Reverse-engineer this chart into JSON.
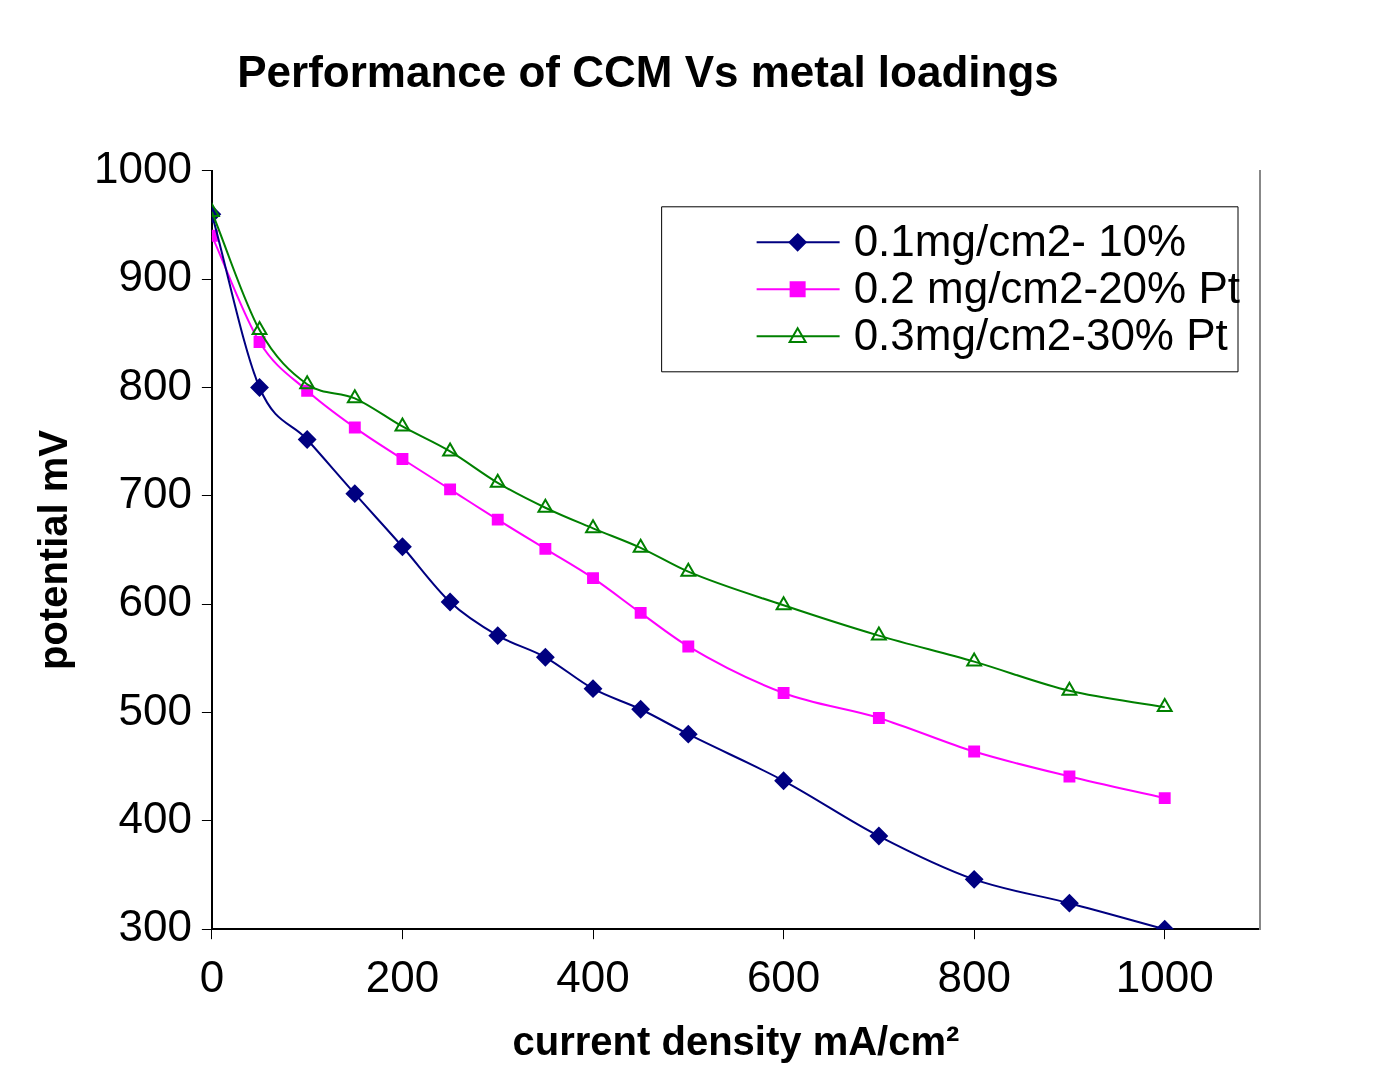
{
  "chart_data": {
    "type": "line",
    "title": "Performance of CCM Vs metal loadings",
    "xlabel": "current density mA/cm²",
    "ylabel": "potential mV",
    "xlim": [
      0,
      1100
    ],
    "xticks": [
      0,
      200,
      400,
      600,
      800,
      1000
    ],
    "ylim": [
      300,
      1000
    ],
    "yticks": [
      300,
      400,
      500,
      600,
      700,
      800,
      900,
      1000
    ],
    "grid": false,
    "legend": "top right",
    "line_style": "solid",
    "x": [
      0,
      50,
      100,
      150,
      200,
      250,
      300,
      350,
      400,
      450,
      500,
      600,
      700,
      800,
      900,
      1000
    ],
    "series": [
      {
        "name": "0.1mg/cm2- 10%",
        "color": "#000080",
        "marker": "diamond",
        "values": [
          960,
          800,
          752,
          702,
          653,
          602,
          571,
          551,
          522,
          503,
          480,
          437,
          386,
          346,
          324,
          300
        ]
      },
      {
        "name": "0.2 mg/cm2-20% Pt",
        "color": "#ff00ff",
        "marker": "square",
        "values": [
          940,
          842,
          797,
          763,
          734,
          706,
          678,
          651,
          624,
          592,
          561,
          518,
          495,
          464,
          441,
          421
        ]
      },
      {
        "name": "0.3mg/cm2-30% Pt",
        "color": "#008000",
        "marker": "triangle",
        "values": [
          962,
          853,
          803,
          790,
          764,
          741,
          712,
          689,
          670,
          652,
          630,
          599,
          571,
          547,
          520,
          505
        ]
      }
    ]
  }
}
